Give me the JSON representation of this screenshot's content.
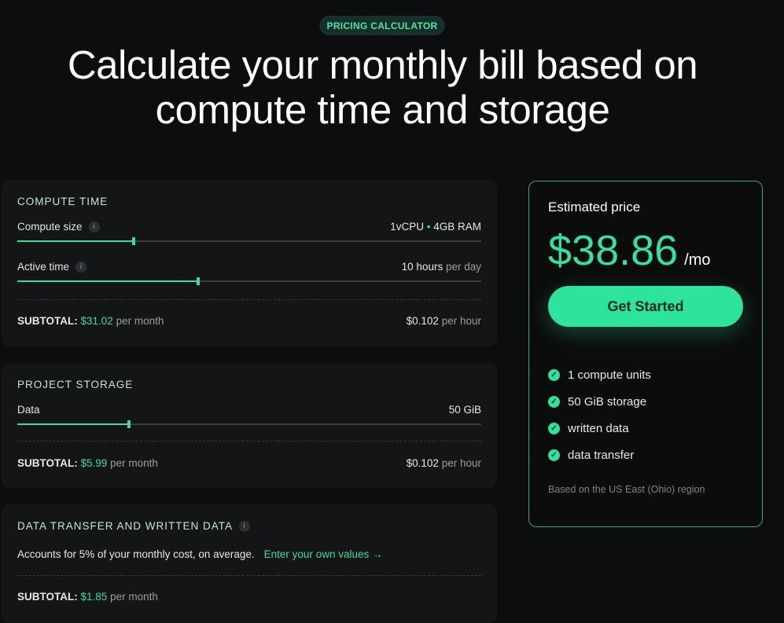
{
  "badge": "PRICING CALCULATOR",
  "title_line1": "Calculate your monthly bill based on",
  "title_line2": "compute time and storage",
  "compute": {
    "heading": "COMPUTE TIME",
    "size_label": "Compute size",
    "size_cpu": "1vCPU",
    "size_sep": "•",
    "size_ram": "4GB RAM",
    "size_percent": 25,
    "active_label": "Active time",
    "active_value": "10 hours",
    "active_unit": "per day",
    "active_percent": 39,
    "subtotal_label": "SUBTOTAL:",
    "subtotal_value": "$31.02",
    "subtotal_unit": "per month",
    "rate_value": "$0.102",
    "rate_unit": "per hour"
  },
  "storage": {
    "heading": "PROJECT STORAGE",
    "data_label": "Data",
    "data_value": "50 GiB",
    "data_percent": 24,
    "subtotal_label": "SUBTOTAL:",
    "subtotal_value": "$5.99",
    "subtotal_unit": "per month",
    "rate_value": "$0.102",
    "rate_unit": "per hour"
  },
  "transfer": {
    "heading": "DATA TRANSFER AND WRITTEN DATA",
    "desc": "Accounts for 5% of your monthly cost, on average.",
    "link": "Enter your own values →",
    "subtotal_label": "SUBTOTAL:",
    "subtotal_value": "$1.85",
    "subtotal_unit": "per month"
  },
  "estimate": {
    "heading": "Estimated price",
    "price": "$38.86",
    "period": "/mo",
    "cta": "Get Started",
    "features": [
      "1 compute units",
      "50 GiB storage",
      "written data",
      "data transfer"
    ],
    "note": "Based on the US East (Ohio) region"
  },
  "colors": {
    "accent": "#3edc9a",
    "background": "#0c0d0e",
    "card": "#131517"
  }
}
